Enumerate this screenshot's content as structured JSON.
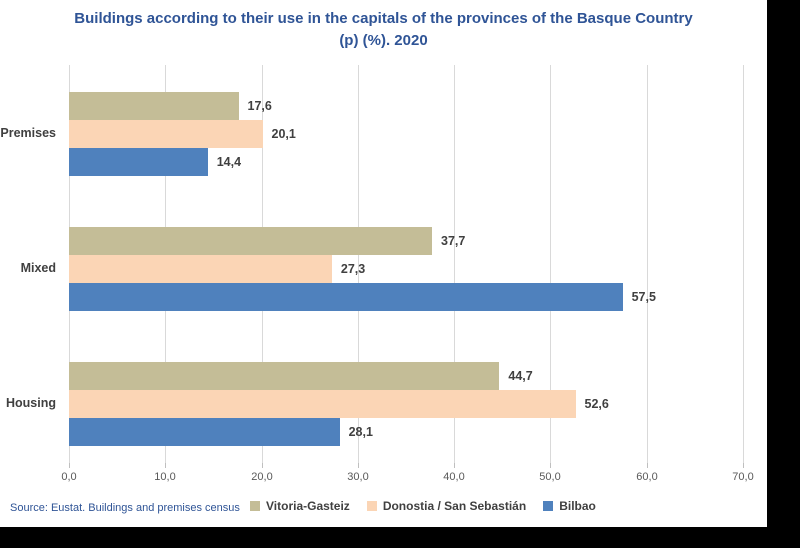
{
  "frame": {
    "outer_bg": "#000000",
    "page_bg": "#ffffff"
  },
  "title": {
    "line1": "Buildings according to their use in the capitals of the provinces of the Basque Country",
    "line2": "(p) (%). 2020",
    "color": "#2f5496"
  },
  "source": {
    "text": "Source: Eustat. Buildings and premises census"
  },
  "chart_data": {
    "type": "bar",
    "orientation": "horizontal",
    "title": "Buildings according to their use in the capitals of the provinces of the Basque Country (p) (%). 2020",
    "categories": [
      "Premises",
      "Mixed",
      "Housing"
    ],
    "series": [
      {
        "name": "Vitoria-Gasteiz",
        "color": "#C4BD97",
        "values": [
          17.6,
          37.7,
          44.7
        ]
      },
      {
        "name": "Donostia / San Sebastián",
        "color": "#FBD5B5",
        "values": [
          20.1,
          27.3,
          52.6
        ]
      },
      {
        "name": "Bilbao",
        "color": "#4F81BD",
        "values": [
          14.4,
          57.5,
          28.1
        ]
      }
    ],
    "value_labels": [
      [
        "17,6",
        "37,7",
        "44,7"
      ],
      [
        "20,1",
        "27,3",
        "52,6"
      ],
      [
        "14,4",
        "57,5",
        "28,1"
      ]
    ],
    "x_ticks": [
      "0,0",
      "10,0",
      "20,0",
      "30,0",
      "40,0",
      "50,0",
      "60,0",
      "70,0"
    ],
    "xlim": [
      0,
      70
    ],
    "grid": true,
    "gridline_color": "#d9d9d9",
    "legend_position": "bottom"
  }
}
